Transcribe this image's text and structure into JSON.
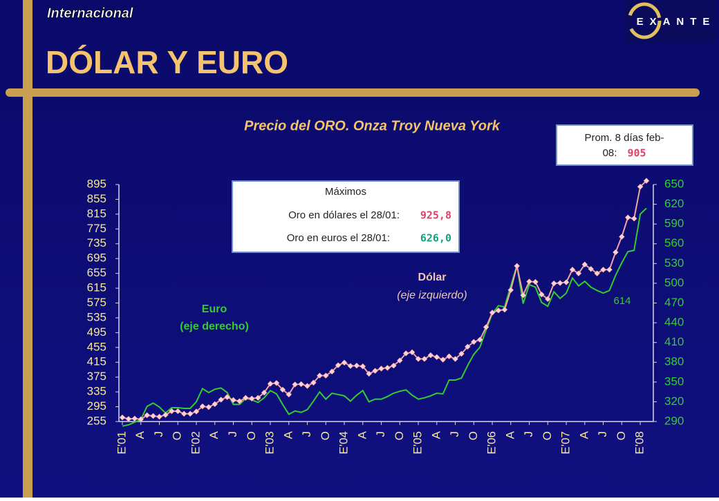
{
  "header": {
    "section": "Internacional",
    "title": "DÓLAR Y EURO",
    "logo": "EXANTE"
  },
  "chart_data": {
    "type": "line",
    "title": "Precio del ORO. Onza Troy  Nueva York",
    "categories": [
      "E'01",
      null,
      null,
      "A",
      null,
      null,
      "J",
      null,
      null,
      "O",
      null,
      null,
      "E'02",
      null,
      null,
      "A",
      null,
      null,
      "J",
      null,
      null,
      "O",
      null,
      null,
      "E'03",
      null,
      null,
      "A",
      null,
      null,
      "J",
      null,
      null,
      "O",
      null,
      null,
      "E'04",
      null,
      null,
      "A",
      null,
      null,
      "J",
      null,
      null,
      "O",
      null,
      null,
      "E'05",
      null,
      null,
      "A",
      null,
      null,
      "J",
      null,
      null,
      "O",
      null,
      null,
      "E'06",
      null,
      null,
      "A",
      null,
      null,
      "J",
      null,
      null,
      "O",
      null,
      null,
      "E'07",
      null,
      null,
      "A",
      null,
      null,
      "J",
      null,
      null,
      "O",
      null,
      null,
      "E'08",
      null
    ],
    "series": [
      {
        "name": "Dólar",
        "color": "#f4a6a6",
        "marker_color": "#ffd0d0",
        "axis": "y",
        "values": [
          266,
          262,
          263,
          261,
          272,
          270,
          268,
          273,
          283,
          283,
          276,
          276,
          282,
          296,
          294,
          302,
          314,
          321,
          313,
          310,
          319,
          317,
          319,
          333,
          357,
          359,
          341,
          328,
          355,
          356,
          351,
          360,
          379,
          379,
          390,
          407,
          414,
          405,
          406,
          404,
          384,
          392,
          398,
          400,
          406,
          420,
          439,
          442,
          424,
          424,
          434,
          429,
          422,
          431,
          424,
          438,
          457,
          470,
          476,
          510,
          549,
          555,
          557,
          610,
          675,
          596,
          633,
          632,
          598,
          586,
          628,
          629,
          631,
          665,
          655,
          679,
          667,
          655,
          665,
          665,
          712,
          754,
          806,
          803,
          889,
          905
        ]
      },
      {
        "name": "Euro",
        "color": "#33cc33",
        "axis": "y2",
        "values": [
          283,
          285,
          289,
          293,
          313,
          318,
          312,
          303,
          311,
          311,
          310,
          310,
          320,
          340,
          334,
          339,
          341,
          334,
          316,
          316,
          325,
          323,
          319,
          326,
          337,
          332,
          316,
          301,
          306,
          304,
          308,
          321,
          335,
          324,
          333,
          331,
          329,
          321,
          330,
          337,
          320,
          324,
          324,
          328,
          333,
          336,
          338,
          330,
          324,
          326,
          329,
          333,
          332,
          353,
          353,
          356,
          375,
          392,
          403,
          429,
          454,
          466,
          464,
          496,
          527,
          469,
          498,
          494,
          471,
          465,
          487,
          477,
          485,
          508,
          496,
          503,
          494,
          489,
          485,
          489,
          512,
          531,
          548,
          550,
          605,
          614
        ]
      }
    ],
    "ylim": [
      255,
      895
    ],
    "yticks": [
      255,
      295,
      335,
      375,
      415,
      455,
      495,
      535,
      575,
      615,
      655,
      695,
      735,
      775,
      815,
      855,
      895
    ],
    "y2lim": [
      290,
      650
    ],
    "y2ticks": [
      290,
      320,
      350,
      380,
      410,
      440,
      470,
      500,
      530,
      560,
      590,
      620,
      650
    ],
    "annotations": {
      "euro": [
        "Euro",
        "(eje derecho)"
      ],
      "dolar": [
        "Dólar",
        "(eje izquierdo)"
      ],
      "last_euro": "614"
    },
    "average_box": {
      "text": "Prom. 8 días feb-",
      "text2": "08:",
      "value": "905"
    },
    "max_box": {
      "title": "Máximos",
      "rows": [
        [
          "Oro en dólares el 28/01:",
          "925,8"
        ],
        [
          "Oro en euros el 28/01:",
          "626,0"
        ]
      ]
    }
  }
}
